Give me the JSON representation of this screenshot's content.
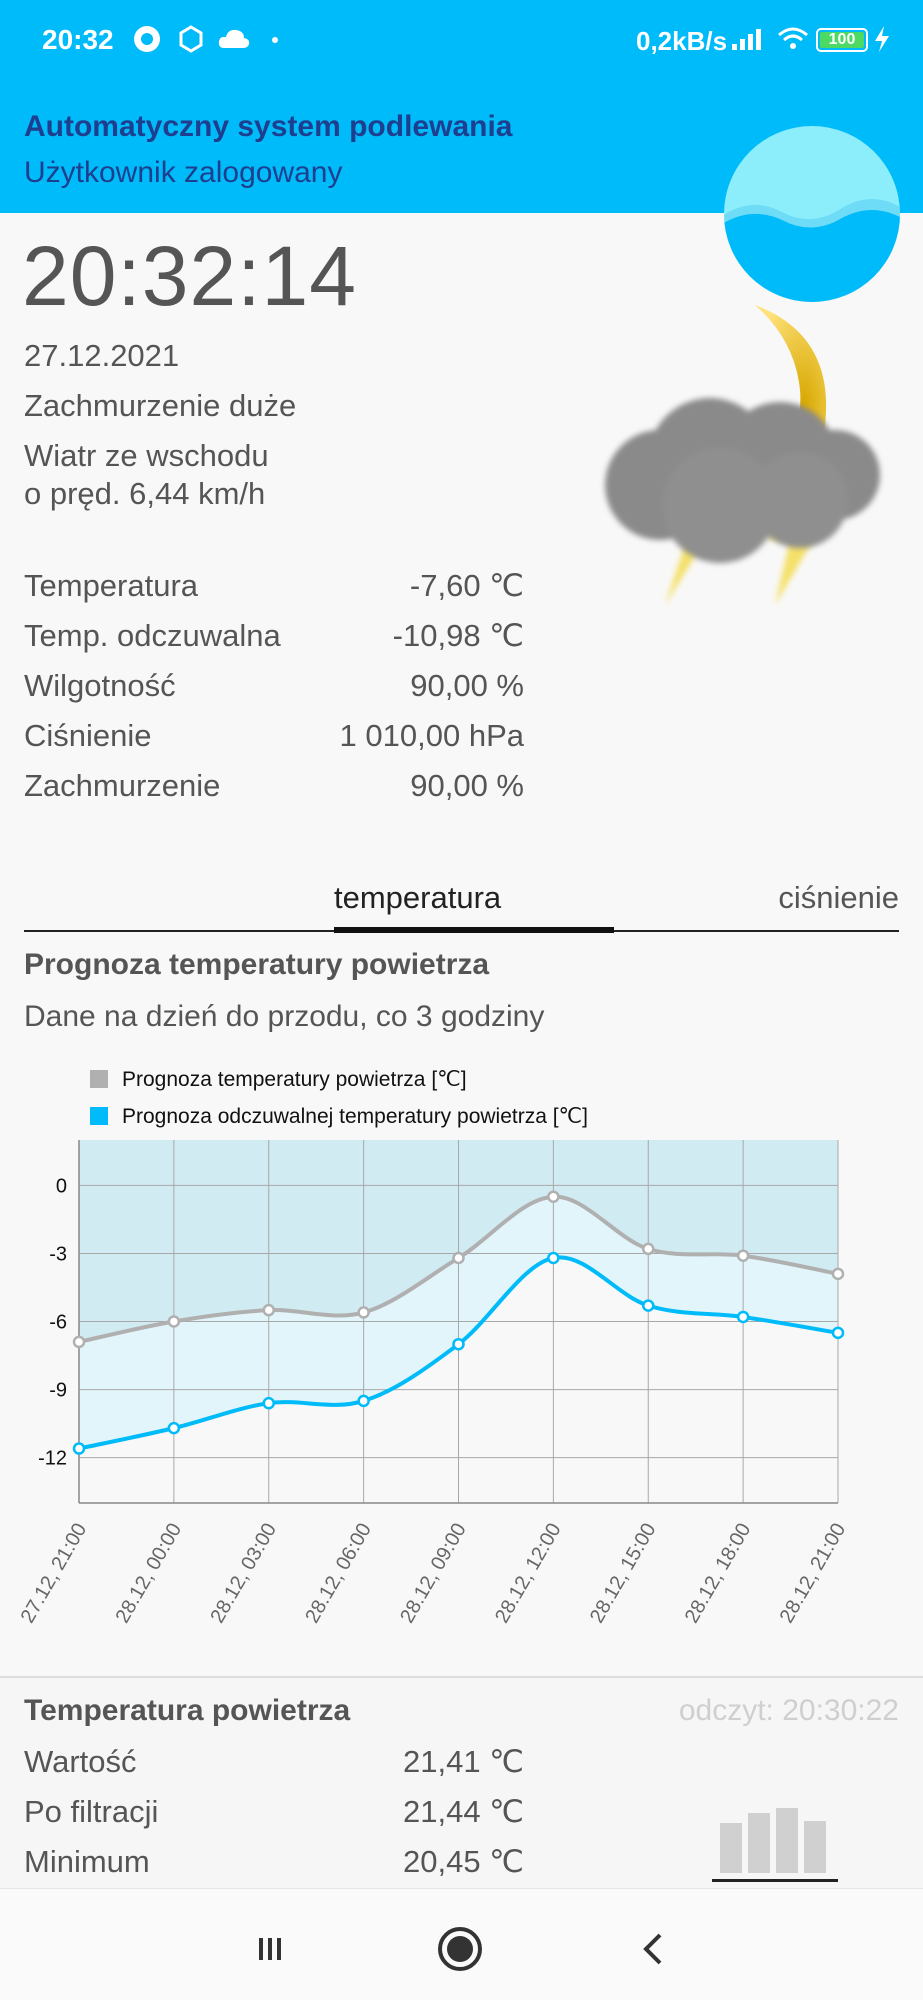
{
  "status_bar": {
    "time": "20:32",
    "network_speed": "0,2kB/s",
    "battery": "100",
    "icons": [
      "app-badge-icon",
      "hexagon-icon",
      "cloud-icon",
      "dot-icon",
      "signal-icon",
      "wifi-icon",
      "battery-icon",
      "charging-icon"
    ]
  },
  "app": {
    "title": "Automatyczny system podlewania",
    "subtitle": "Użytkownik zalogowany"
  },
  "current": {
    "clock": "20:32:14",
    "date": "27.12.2021",
    "description": "Zachmurzenie duże",
    "wind_line1": "Wiatr ze wschodu",
    "wind_line2": "o pręd. 6,44 km/h",
    "weather_icon": "night-thunderstorm-icon"
  },
  "params": [
    {
      "label": "Temperatura",
      "value": "-7,60 ℃"
    },
    {
      "label": "Temp. odczuwalna",
      "value": "-10,98 ℃"
    },
    {
      "label": "Wilgotność",
      "value": "90,00 %"
    },
    {
      "label": "Ciśnienie",
      "value": "1 010,00 hPa"
    },
    {
      "label": "Zachmurzenie",
      "value": "90,00 %"
    }
  ],
  "tabs": {
    "temperature": "temperatura",
    "pressure": "ciśnienie",
    "active": "temperatura"
  },
  "forecast": {
    "title": "Prognoza temperatury powietrza",
    "subtitle": "Dane na dzień do przodu, co 3 godziny"
  },
  "chart_data": {
    "type": "area",
    "x": [
      "27.12, 21:00",
      "28.12, 00:00",
      "28.12, 03:00",
      "28.12, 06:00",
      "28.12, 09:00",
      "28.12, 12:00",
      "28.12, 15:00",
      "28.12, 18:00",
      "28.12, 21:00"
    ],
    "series": [
      {
        "name": "Prognoza temperatury powietrza [℃]",
        "color": "#b0b0b0",
        "values": [
          -6.9,
          -6.0,
          -5.5,
          -5.6,
          -3.2,
          -0.5,
          -2.8,
          -3.1,
          -3.9
        ]
      },
      {
        "name": "Prognoza odczuwalnej temperatury powietrza [℃]",
        "color": "#00bbf9",
        "values": [
          -11.6,
          -10.7,
          -9.6,
          -9.5,
          -7.0,
          -3.2,
          -5.3,
          -5.8,
          -6.5
        ]
      }
    ],
    "yticks": [
      0,
      -3,
      -6,
      -9,
      -12
    ],
    "ylim": [
      -14,
      2
    ],
    "grid": true,
    "legend": "top-left"
  },
  "reading": {
    "title": "Temperatura powietrza",
    "time": "odczyt: 20:30:22",
    "rows": [
      {
        "label": "Wartość",
        "value": "21,41 ℃"
      },
      {
        "label": "Po filtracji",
        "value": "21,44 ℃"
      },
      {
        "label": "Minimum",
        "value": "20,45 ℃"
      }
    ],
    "icon": "bar-chart-icon"
  },
  "navbar": {
    "icons": [
      "recent-apps-icon",
      "home-icon",
      "back-icon"
    ]
  }
}
